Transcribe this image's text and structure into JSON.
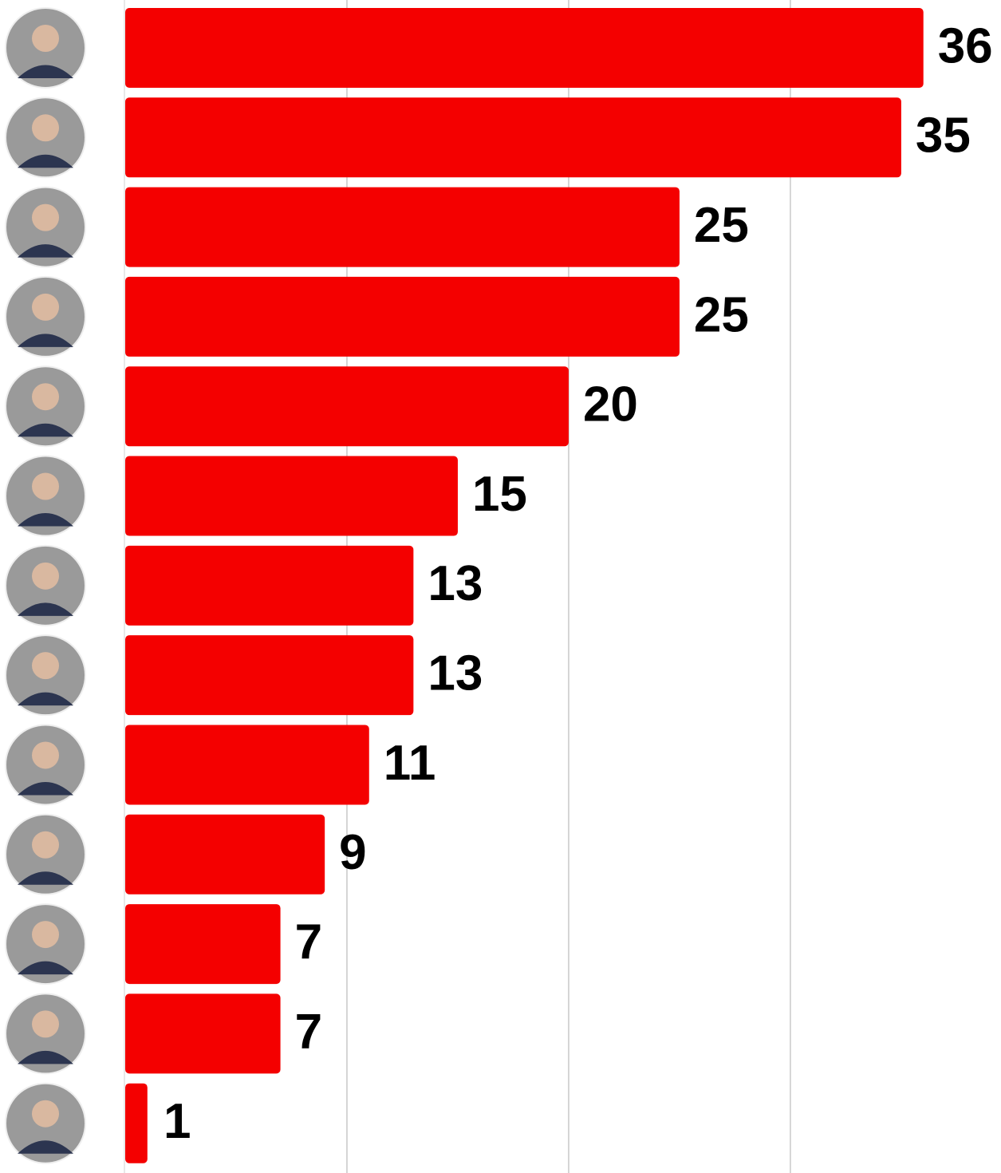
{
  "chart_data": {
    "type": "barh",
    "categories": [
      null,
      null,
      null,
      null,
      null,
      null,
      null,
      null,
      null,
      null,
      null,
      null,
      null
    ],
    "values": [
      36,
      35,
      25,
      25,
      20,
      15,
      13,
      13,
      11,
      9,
      7,
      7,
      1
    ],
    "color": "#f40000",
    "xlim": [
      0,
      39.5
    ],
    "xticks": [
      10,
      20,
      30
    ],
    "grid": true
  }
}
